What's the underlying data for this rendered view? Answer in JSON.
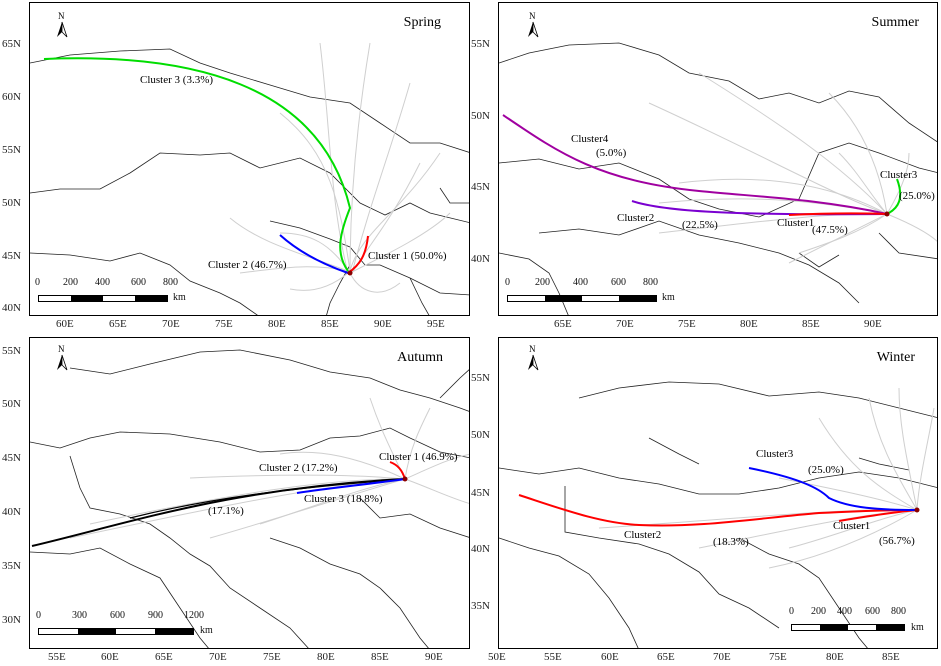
{
  "panels": {
    "spring": {
      "season": "Spring",
      "lat_labels": [
        "65N",
        "60N",
        "55N",
        "50N",
        "45N",
        "40N"
      ],
      "lon_labels": [
        "60E",
        "65E",
        "70E",
        "75E",
        "80E",
        "85E",
        "90E",
        "95E"
      ],
      "clusters": [
        {
          "label": "Cluster 1 (50.0%)",
          "color": "#ff0000"
        },
        {
          "label": "Cluster 2 (46.7%)",
          "color": "#0000ff"
        },
        {
          "label": "Cluster 3 (3.3%)",
          "color": "#00dd00"
        }
      ],
      "scale": {
        "ticks": [
          "0",
          "200",
          "400",
          "600",
          "800"
        ],
        "unit": "km"
      }
    },
    "summer": {
      "season": "Summer",
      "lat_labels": [
        "55N",
        "50N",
        "45N",
        "40N"
      ],
      "lon_labels": [
        "65E",
        "70E",
        "75E",
        "80E",
        "85E",
        "90E"
      ],
      "clusters": [
        {
          "label": "Cluster1",
          "pct": "(47.5%)",
          "color": "#ff0000"
        },
        {
          "label": "Cluster2",
          "pct": "(22.5%)",
          "color": "#7a00d0"
        },
        {
          "label": "Cluster3",
          "pct": "(25.0%)",
          "color": "#00dd00"
        },
        {
          "label": "Cluster4",
          "pct": "(5.0%)",
          "color": "#a000a0"
        }
      ],
      "scale": {
        "ticks": [
          "0",
          "200",
          "400",
          "600",
          "800"
        ],
        "unit": "km"
      }
    },
    "autumn": {
      "season": "Autumn",
      "lat_labels": [
        "55N",
        "50N",
        "45N",
        "40N",
        "35N",
        "30N"
      ],
      "lon_labels": [
        "55E",
        "60E",
        "65E",
        "70E",
        "75E",
        "80E",
        "85E",
        "90E"
      ],
      "clusters": [
        {
          "label": "Cluster 1 (46.9%)",
          "color": "#ff0000"
        },
        {
          "label": "Cluster 2 (17.2%)",
          "color": "#000000"
        },
        {
          "label": "Cluster 3 (18.8%)",
          "color": "#0000ff"
        },
        {
          "label": "(17.1%)",
          "color": "#000000"
        }
      ],
      "scale": {
        "ticks": [
          "0",
          "300",
          "600",
          "900",
          "1200"
        ],
        "unit": "km"
      }
    },
    "winter": {
      "season": "Winter",
      "lat_labels": [
        "55N",
        "50N",
        "45N",
        "40N",
        "35N"
      ],
      "lon_labels": [
        "50E",
        "55E",
        "60E",
        "65E",
        "70E",
        "75E",
        "80E",
        "85E"
      ],
      "clusters": [
        {
          "label": "Cluster1",
          "pct": "(56.7%)",
          "color": "#ff0000"
        },
        {
          "label": "Cluster2",
          "pct": "(18.3%)",
          "color": "#ff0000"
        },
        {
          "label": "Cluster3",
          "pct": "(25.0%)",
          "color": "#0000ff"
        }
      ],
      "scale": {
        "ticks": [
          "0",
          "200",
          "400",
          "600",
          "800"
        ],
        "unit": "km"
      }
    }
  },
  "north_label": "N"
}
